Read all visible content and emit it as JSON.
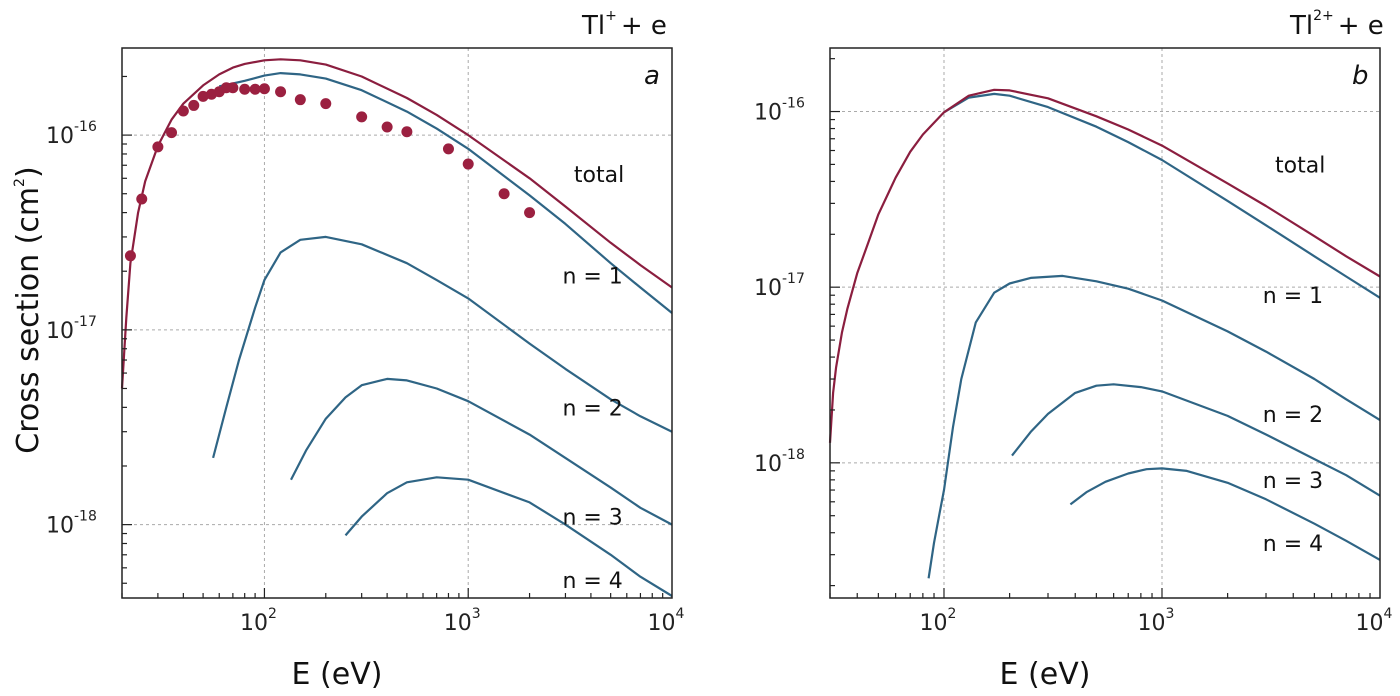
{
  "colors": {
    "total": "#8b1e3f",
    "partial": "#2f6585",
    "points": "#9b2040"
  },
  "ylabel": {
    "main": "Cross section (cm",
    "sup": "2",
    "close": ")"
  },
  "chart_data": [
    {
      "type": "line",
      "panel": "a",
      "title": {
        "base": "Tl",
        "sup": "+",
        "rest": "+ e"
      },
      "xlabel": "E (eV)",
      "xscale": "log",
      "yscale": "log",
      "xlim": [
        20,
        10000
      ],
      "ylim": [
        4.2e-19,
        2.8e-16
      ],
      "grid": true,
      "xticks": [
        {
          "value": 100,
          "base": "10",
          "exp": "2"
        },
        {
          "value": 1000,
          "base": "10",
          "exp": "3"
        },
        {
          "value": 10000,
          "base": "10",
          "exp": "4"
        }
      ],
      "yticks": [
        {
          "value": 1e-18,
          "base": "10",
          "exp": "-18"
        },
        {
          "value": 1e-17,
          "base": "10",
          "exp": "-17"
        },
        {
          "value": 1e-16,
          "base": "10",
          "exp": "-16"
        }
      ],
      "annotations": [
        {
          "text": "total",
          "x": 3300,
          "y": 6.3e-17
        },
        {
          "text": "n = 1",
          "x": 2900,
          "y": 1.9e-17
        },
        {
          "text": "n = 2",
          "x": 2900,
          "y": 4e-18
        },
        {
          "text": "n = 3",
          "x": 2900,
          "y": 1.1e-18
        },
        {
          "text": "n = 4",
          "x": 2900,
          "y": 5.2e-19
        }
      ],
      "series": [
        {
          "role": "total",
          "x": [
            20,
            21,
            22,
            24,
            26,
            30,
            35,
            40,
            50,
            60,
            70,
            80,
            100,
            120,
            150,
            200,
            300,
            500,
            700,
            1000,
            2000,
            3000,
            5000,
            7000,
            10000
          ],
          "y": [
            5e-18,
            1.15e-17,
            2.2e-17,
            4e-17,
            5.8e-17,
            8.8e-17,
            1.2e-16,
            1.45e-16,
            1.8e-16,
            2.05e-16,
            2.22e-16,
            2.32e-16,
            2.42e-16,
            2.45e-16,
            2.42e-16,
            2.3e-16,
            2e-16,
            1.55e-16,
            1.27e-16,
            1e-16,
            6e-17,
            4.3e-17,
            2.8e-17,
            2.15e-17,
            1.65e-17
          ]
        },
        {
          "role": "partial",
          "x": [
            60,
            70,
            80,
            100,
            120,
            150,
            200,
            300,
            500,
            700,
            1000,
            2000,
            3000,
            5000,
            7000,
            10000
          ],
          "y": [
            1.78e-16,
            1.84e-16,
            1.9e-16,
            2.02e-16,
            2.08e-16,
            2.05e-16,
            1.95e-16,
            1.7e-16,
            1.32e-16,
            1.08e-16,
            8.5e-17,
            4.9e-17,
            3.5e-17,
            2.2e-17,
            1.65e-17,
            1.22e-17
          ]
        },
        {
          "role": "partial",
          "x": [
            56,
            65,
            75,
            90,
            100,
            120,
            150,
            200,
            300,
            500,
            700,
            1000,
            2000,
            3000,
            5000,
            7000,
            10000
          ],
          "y": [
            2.2e-18,
            4e-18,
            7e-18,
            1.3e-17,
            1.8e-17,
            2.5e-17,
            2.9e-17,
            3e-17,
            2.75e-17,
            2.2e-17,
            1.8e-17,
            1.45e-17,
            8.5e-18,
            6.3e-18,
            4.4e-18,
            3.6e-18,
            3e-18
          ]
        },
        {
          "role": "partial",
          "x": [
            135,
            160,
            200,
            250,
            300,
            400,
            500,
            700,
            1000,
            2000,
            3000,
            5000,
            7000,
            10000
          ],
          "y": [
            1.7e-18,
            2.4e-18,
            3.5e-18,
            4.5e-18,
            5.2e-18,
            5.6e-18,
            5.5e-18,
            5e-18,
            4.3e-18,
            2.9e-18,
            2.2e-18,
            1.55e-18,
            1.22e-18,
            1e-18
          ]
        },
        {
          "role": "partial",
          "x": [
            250,
            300,
            400,
            500,
            700,
            1000,
            2000,
            3000,
            5000,
            7000,
            10000
          ],
          "y": [
            8.8e-19,
            1.1e-18,
            1.45e-18,
            1.65e-18,
            1.75e-18,
            1.7e-18,
            1.3e-18,
            1e-18,
            7e-19,
            5.4e-19,
            4.3e-19
          ]
        }
      ],
      "points": {
        "x": [
          22,
          25,
          30,
          35,
          40,
          45,
          50,
          55,
          60,
          65,
          70,
          80,
          90,
          100,
          120,
          150,
          200,
          300,
          400,
          500,
          800,
          1000,
          1500,
          2000
        ],
        "y": [
          2.4e-17,
          4.7e-17,
          8.7e-17,
          1.03e-16,
          1.33e-16,
          1.42e-16,
          1.58e-16,
          1.62e-16,
          1.67e-16,
          1.75e-16,
          1.75e-16,
          1.72e-16,
          1.72e-16,
          1.73e-16,
          1.67e-16,
          1.52e-16,
          1.45e-16,
          1.24e-16,
          1.1e-16,
          1.04e-16,
          8.5e-17,
          7.1e-17,
          5e-17,
          4e-17
        ]
      }
    },
    {
      "type": "line",
      "panel": "b",
      "title": {
        "base": "Tl",
        "sup": "2+",
        "rest": "+ e"
      },
      "xlabel": "E (eV)",
      "xscale": "log",
      "yscale": "log",
      "xlim": [
        30,
        10000
      ],
      "ylim": [
        1.7e-19,
        2.3e-16
      ],
      "grid": true,
      "xticks": [
        {
          "value": 100,
          "base": "10",
          "exp": "2"
        },
        {
          "value": 1000,
          "base": "10",
          "exp": "3"
        },
        {
          "value": 10000,
          "base": "10",
          "exp": "4"
        }
      ],
      "yticks": [
        {
          "value": 1e-18,
          "base": "10",
          "exp": "-18"
        },
        {
          "value": 1e-17,
          "base": "10",
          "exp": "-17"
        },
        {
          "value": 1e-16,
          "base": "10",
          "exp": "-16"
        }
      ],
      "annotations": [
        {
          "text": "total",
          "x": 3300,
          "y": 5e-17
        },
        {
          "text": "n = 1",
          "x": 2900,
          "y": 9e-18
        },
        {
          "text": "n = 2",
          "x": 2900,
          "y": 1.9e-18
        },
        {
          "text": "n = 3",
          "x": 2900,
          "y": 8e-19
        },
        {
          "text": "n = 4",
          "x": 2900,
          "y": 3.5e-19
        }
      ],
      "series": [
        {
          "role": "total",
          "x": [
            30,
            31,
            32,
            34,
            36,
            40,
            45,
            50,
            60,
            70,
            80,
            100,
            130,
            170,
            200,
            300,
            500,
            700,
            1000,
            2000,
            3000,
            5000,
            7000,
            10000
          ],
          "y": [
            1.3e-18,
            2.5e-18,
            3.5e-18,
            5.5e-18,
            7.5e-18,
            1.2e-17,
            1.8e-17,
            2.6e-17,
            4.2e-17,
            5.9e-17,
            7.4e-17,
            9.9e-17,
            1.23e-16,
            1.33e-16,
            1.32e-16,
            1.19e-16,
            9.4e-17,
            7.9e-17,
            6.4e-17,
            3.9e-17,
            2.9e-17,
            1.95e-17,
            1.5e-17,
            1.15e-17
          ]
        },
        {
          "role": "partial",
          "x": [
            100,
            130,
            170,
            200,
            300,
            500,
            700,
            1000,
            2000,
            3000,
            5000,
            7000,
            10000
          ],
          "y": [
            9.9e-17,
            1.2e-16,
            1.26e-16,
            1.23e-16,
            1.06e-16,
            8.2e-17,
            6.7e-17,
            5.3e-17,
            3.1e-17,
            2.25e-17,
            1.5e-17,
            1.15e-17,
            8.7e-18
          ]
        },
        {
          "role": "partial",
          "x": [
            85,
            90,
            95,
            100,
            110,
            120,
            140,
            170,
            200,
            250,
            350,
            500,
            700,
            1000,
            2000,
            3000,
            5000,
            7000,
            10000
          ],
          "y": [
            2.2e-19,
            3.5e-19,
            5e-19,
            7e-19,
            1.6e-18,
            3e-18,
            6.3e-18,
            9.3e-18,
            1.05e-17,
            1.13e-17,
            1.16e-17,
            1.08e-17,
            9.8e-18,
            8.4e-18,
            5.6e-18,
            4.3e-18,
            3e-18,
            2.3e-18,
            1.75e-18
          ]
        },
        {
          "role": "partial",
          "x": [
            205,
            250,
            300,
            400,
            500,
            600,
            800,
            1000,
            2000,
            3000,
            5000,
            7000,
            10000
          ],
          "y": [
            1.1e-18,
            1.5e-18,
            1.9e-18,
            2.5e-18,
            2.75e-18,
            2.8e-18,
            2.7e-18,
            2.55e-18,
            1.85e-18,
            1.45e-18,
            1.05e-18,
            8.5e-19,
            6.5e-19
          ]
        },
        {
          "role": "partial",
          "x": [
            380,
            450,
            550,
            700,
            850,
            1000,
            1300,
            2000,
            3000,
            5000,
            7000,
            10000
          ],
          "y": [
            5.8e-19,
            6.8e-19,
            7.8e-19,
            8.7e-19,
            9.2e-19,
            9.3e-19,
            9e-19,
            7.7e-19,
            6.2e-19,
            4.5e-19,
            3.6e-19,
            2.8e-19
          ]
        }
      ]
    }
  ]
}
